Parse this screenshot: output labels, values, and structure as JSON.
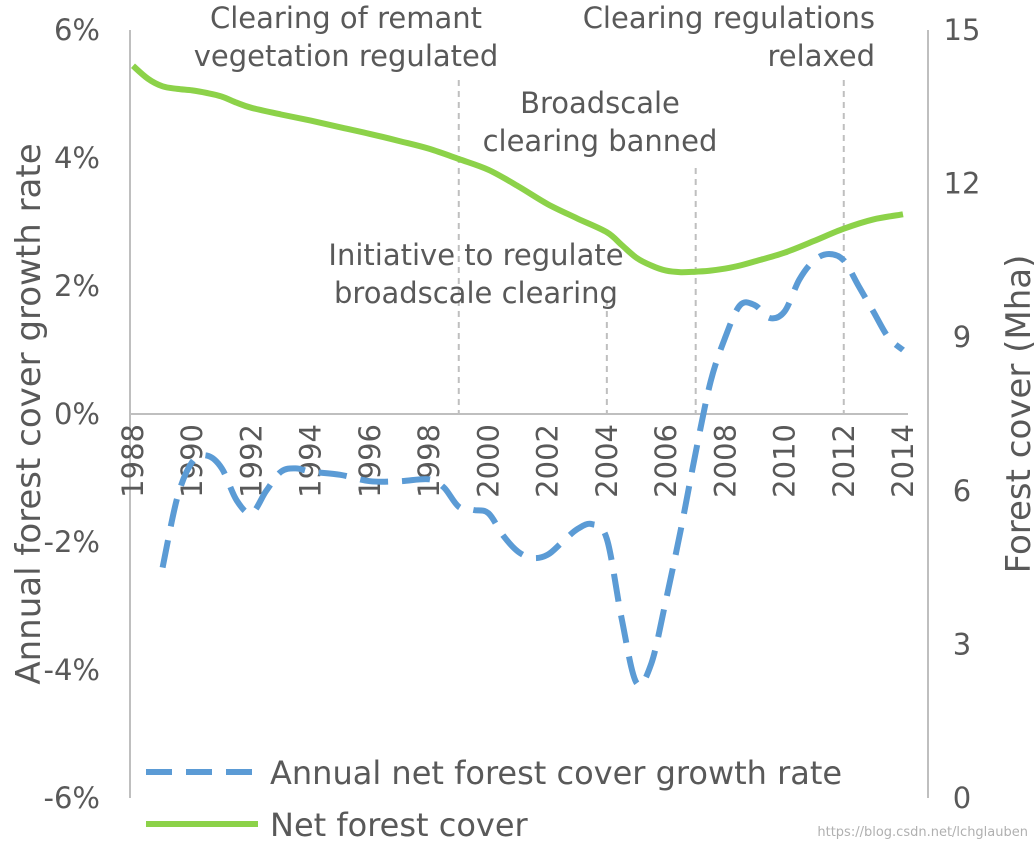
{
  "chart_data": {
    "type": "line",
    "x": [
      1988,
      1989,
      1990,
      1991,
      1992,
      1993,
      1994,
      1995,
      1996,
      1997,
      1998,
      1999,
      2000,
      2001,
      2002,
      2003,
      2004,
      2005,
      2006,
      2007,
      2008,
      2009,
      2010,
      2011,
      2012,
      2013,
      2014
    ],
    "x_tick_labels": [
      "1988",
      "1990",
      "1992",
      "1994",
      "1996",
      "1998",
      "2000",
      "2002",
      "2004",
      "2006",
      "2008",
      "2010",
      "2012",
      "2014"
    ],
    "series": [
      {
        "name": "Annual net forest cover  growth rate",
        "axis": "left",
        "style": "dashed",
        "color": "#5b9bd5",
        "x": [
          1989,
          1989.5,
          1990,
          1990.5,
          1991,
          1991.5,
          1992,
          1992.5,
          1993,
          1993.5,
          1994,
          1995,
          1996,
          1997,
          1998,
          1998.5,
          1999,
          1999.5,
          2000,
          2000.5,
          2001,
          2001.5,
          2002,
          2002.5,
          2003,
          2003.5,
          2004,
          2004.5,
          2005,
          2005.5,
          2006,
          2006.5,
          2007,
          2007.5,
          2008,
          2008.5,
          2009,
          2009.5,
          2010,
          2010.5,
          2011,
          2011.5,
          2012,
          2012.5,
          2013,
          2013.5,
          2014
        ],
        "values": [
          -2.4,
          -1.3,
          -0.75,
          -0.65,
          -0.85,
          -1.35,
          -1.55,
          -1.2,
          -0.9,
          -0.85,
          -0.9,
          -0.95,
          -1.05,
          -1.05,
          -1.02,
          -1.15,
          -1.45,
          -1.5,
          -1.55,
          -1.9,
          -2.15,
          -2.25,
          -2.2,
          -2.0,
          -1.8,
          -1.72,
          -1.95,
          -3.2,
          -4.2,
          -3.9,
          -2.9,
          -1.8,
          -0.6,
          0.5,
          1.2,
          1.7,
          1.7,
          1.5,
          1.6,
          2.1,
          2.4,
          2.5,
          2.4,
          2.0,
          1.6,
          1.2,
          1.0
        ]
      },
      {
        "name": "Net forest cover",
        "axis": "right",
        "style": "solid",
        "color": "#8cd249",
        "x": [
          1988,
          1988.5,
          1989,
          1989.5,
          1990,
          1990.5,
          1991,
          1991.5,
          1992,
          1993,
          1994,
          1995,
          1996,
          1997,
          1998,
          1999,
          2000,
          2001,
          2002,
          2003,
          2004,
          2004.5,
          2005,
          2005.5,
          2006,
          2006.5,
          2007,
          2007.5,
          2008,
          2008.5,
          2009,
          2010,
          2011,
          2012,
          2013,
          2014
        ],
        "values": [
          14.3,
          14.05,
          13.9,
          13.85,
          13.82,
          13.77,
          13.7,
          13.58,
          13.48,
          13.35,
          13.23,
          13.1,
          12.97,
          12.83,
          12.68,
          12.48,
          12.27,
          11.95,
          11.6,
          11.32,
          11.05,
          10.8,
          10.55,
          10.4,
          10.3,
          10.27,
          10.28,
          10.3,
          10.34,
          10.4,
          10.48,
          10.65,
          10.88,
          11.12,
          11.3,
          11.4
        ]
      }
    ],
    "y_left": {
      "label": "Annual forest cover growth rate",
      "ylim": [
        -6,
        6
      ],
      "ticks": [
        "-6%",
        "-4%",
        "-2%",
        "0%",
        "2%",
        "4%",
        "6%"
      ],
      "tick_values": [
        -6,
        -4,
        -2,
        0,
        2,
        4,
        6
      ]
    },
    "y_right": {
      "label": "Forest cover (Mha)",
      "ylim": [
        0,
        15
      ],
      "ticks": [
        "0",
        "3",
        "6",
        "9",
        "12",
        "15"
      ],
      "tick_values": [
        0,
        3,
        6,
        9,
        12,
        15
      ]
    },
    "xlim": [
      1988,
      2014
    ],
    "events": [
      {
        "year": 1999,
        "lines": [
          "Clearing of remant",
          "vegetation regulated"
        ]
      },
      {
        "year": 2004,
        "lines": [
          "Initiative to regulate",
          "broadscale clearing"
        ]
      },
      {
        "year": 2007,
        "lines": [
          "Broadscale",
          "clearing banned"
        ]
      },
      {
        "year": 2012,
        "lines": [
          "Clearing regulations",
          "relaxed"
        ]
      }
    ],
    "legend": [
      "Annual net forest cover  growth rate",
      "Net forest cover"
    ]
  },
  "watermark": "https://blog.csdn.net/lchglauben"
}
